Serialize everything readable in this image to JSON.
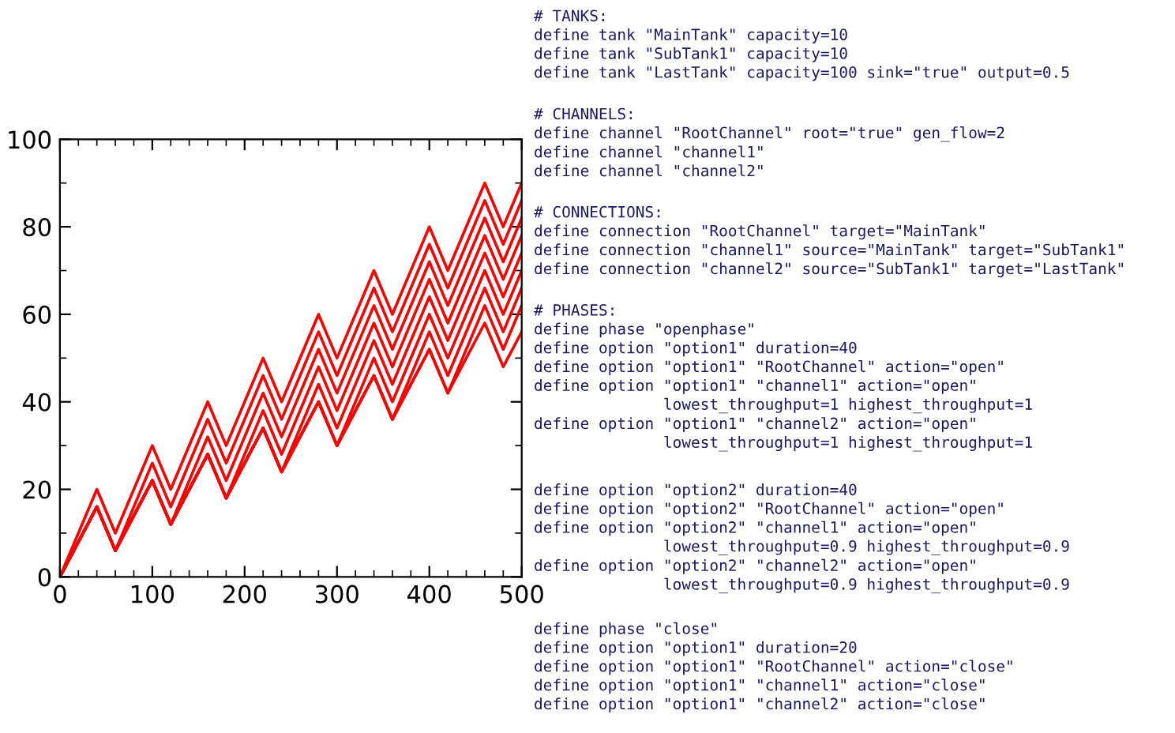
{
  "chart_data": {
    "type": "line",
    "x": [
      0,
      40,
      60,
      100,
      120,
      160,
      180,
      220,
      240,
      280,
      300,
      340,
      360,
      400,
      420,
      460,
      480,
      500
    ],
    "series": [
      {
        "color": "#ff0000",
        "values": [
          0,
          20,
          10,
          30,
          20,
          40,
          30,
          50,
          40,
          60,
          50,
          70,
          60,
          80,
          70,
          90,
          80,
          90
        ]
      },
      {
        "color": "#ff0000",
        "values": [
          0,
          16,
          6,
          26,
          16,
          36,
          26,
          46,
          36,
          56,
          46,
          66,
          56,
          76,
          66,
          86,
          76,
          86
        ]
      },
      {
        "color": "#ff0000",
        "values": [
          0,
          16,
          6,
          22,
          12,
          32,
          22,
          42,
          32,
          52,
          42,
          62,
          52,
          72,
          62,
          82,
          72,
          82
        ]
      },
      {
        "color": "#ff0000",
        "values": [
          0,
          16,
          6,
          22,
          12,
          28,
          18,
          38,
          28,
          48,
          38,
          58,
          48,
          68,
          58,
          78,
          68,
          78
        ]
      },
      {
        "color": "#ff0000",
        "values": [
          0,
          16,
          6,
          22,
          12,
          28,
          18,
          34,
          24,
          44,
          34,
          54,
          44,
          64,
          54,
          74,
          64,
          74
        ]
      },
      {
        "color": "#ff0000",
        "values": [
          0,
          16,
          6,
          22,
          12,
          28,
          18,
          34,
          24,
          40,
          30,
          50,
          40,
          60,
          50,
          70,
          60,
          70
        ]
      },
      {
        "color": "#ff0000",
        "values": [
          0,
          16,
          6,
          22,
          12,
          28,
          18,
          34,
          24,
          40,
          30,
          46,
          36,
          56,
          46,
          66,
          56,
          66
        ]
      },
      {
        "color": "#ff0000",
        "values": [
          0,
          16,
          6,
          22,
          12,
          28,
          18,
          34,
          24,
          40,
          30,
          46,
          36,
          52,
          42,
          62,
          52,
          62
        ]
      },
      {
        "color": "#ff0000",
        "values": [
          0,
          16,
          6,
          22,
          12,
          28,
          18,
          34,
          24,
          40,
          30,
          46,
          36,
          52,
          42,
          58,
          48,
          56
        ]
      }
    ],
    "xlim": [
      0,
      500
    ],
    "xticks": [
      0,
      100,
      200,
      300,
      400,
      500
    ],
    "ylim": [
      0,
      100
    ],
    "yticks": [
      0,
      20,
      40,
      60,
      80,
      100
    ],
    "grid": false,
    "legend": false,
    "marker": "none",
    "line_style": "solid",
    "annotations": [
      "# TANKS:\ndefine tank \"MainTank\" capacity=10\ndefine tank \"SubTank1\" capacity=10\ndefine tank \"LastTank\" capacity=100 sink=\"true\" output=0.5",
      "# CHANNELS:\ndefine channel \"RootChannel\" root=\"true\" gen_flow=2\ndefine channel \"channel1\"\ndefine channel \"channel2\"",
      "# CONNECTIONS:\ndefine connection \"RootChannel\" target=\"MainTank\"\ndefine connection \"channel1\" source=\"MainTank\" target=\"SubTank1\"\ndefine connection \"channel2\" source=\"SubTank1\" target=\"LastTank\"",
      "# PHASES:\ndefine phase \"openphase\"\ndefine option \"option1\" duration=40\ndefine option \"option1\" \"RootChannel\" action=\"open\"\ndefine option \"option1\" \"channel1\" action=\"open\"\n              lowest_throughput=1 highest_throughput=1\ndefine option \"option1\" \"channel2\" action=\"open\"\n              lowest_throughput=1 highest_throughput=1",
      "define option \"option2\" duration=40\ndefine option \"option2\" \"RootChannel\" action=\"open\"\ndefine option \"option2\" \"channel1\" action=\"open\"\n              lowest_throughput=0.9 highest_throughput=0.9\ndefine option \"option2\" \"channel2\" action=\"open\"\n              lowest_throughput=0.9 highest_throughput=0.9",
      "define phase \"close\"\ndefine option \"option1\" duration=20\ndefine option \"option1\" \"RootChannel\" action=\"close\"\ndefine option \"option1\" \"channel1\" action=\"close\"\ndefine option \"option1\" \"channel2\" action=\"close\""
    ]
  }
}
